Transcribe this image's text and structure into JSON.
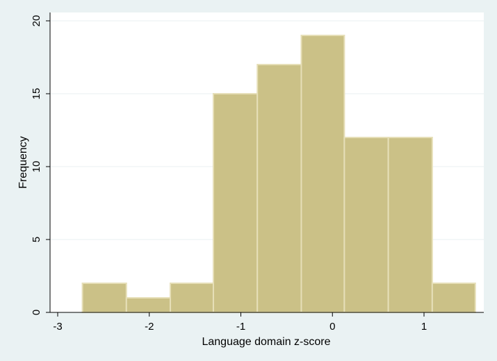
{
  "chart_data": {
    "type": "bar",
    "title": "",
    "xlabel": "Language domain z-score",
    "ylabel": "Frequency",
    "xlim": [
      -3,
      1.6
    ],
    "ylim": [
      0,
      20
    ],
    "xticks": [
      -3,
      -2,
      -1,
      0,
      1
    ],
    "xtick_labels": [
      "-3",
      "-2",
      "-1",
      "0",
      "1"
    ],
    "yticks": [
      0,
      5,
      10,
      15,
      20
    ],
    "ytick_labels": [
      "0",
      "5",
      "10",
      "15",
      "20"
    ],
    "grid": "horizontal",
    "bins": [
      {
        "x0": -2.73,
        "x1": -2.25,
        "value": 2
      },
      {
        "x0": -2.25,
        "x1": -1.77,
        "value": 1
      },
      {
        "x0": -1.77,
        "x1": -1.3,
        "value": 2
      },
      {
        "x0": -1.3,
        "x1": -0.82,
        "value": 15
      },
      {
        "x0": -0.82,
        "x1": -0.34,
        "value": 17
      },
      {
        "x0": -0.34,
        "x1": 0.13,
        "value": 19
      },
      {
        "x0": 0.13,
        "x1": 0.61,
        "value": 12
      },
      {
        "x0": 0.61,
        "x1": 1.09,
        "value": 12
      },
      {
        "x0": 1.09,
        "x1": 1.56,
        "value": 2
      }
    ],
    "colors": {
      "background": "#eaf2f3",
      "plot_background": "#ffffff",
      "bar_fill": "#cbc187",
      "bar_stroke": "#e6dfb8",
      "grid": "#e9eff1",
      "axis": "#000000"
    }
  }
}
